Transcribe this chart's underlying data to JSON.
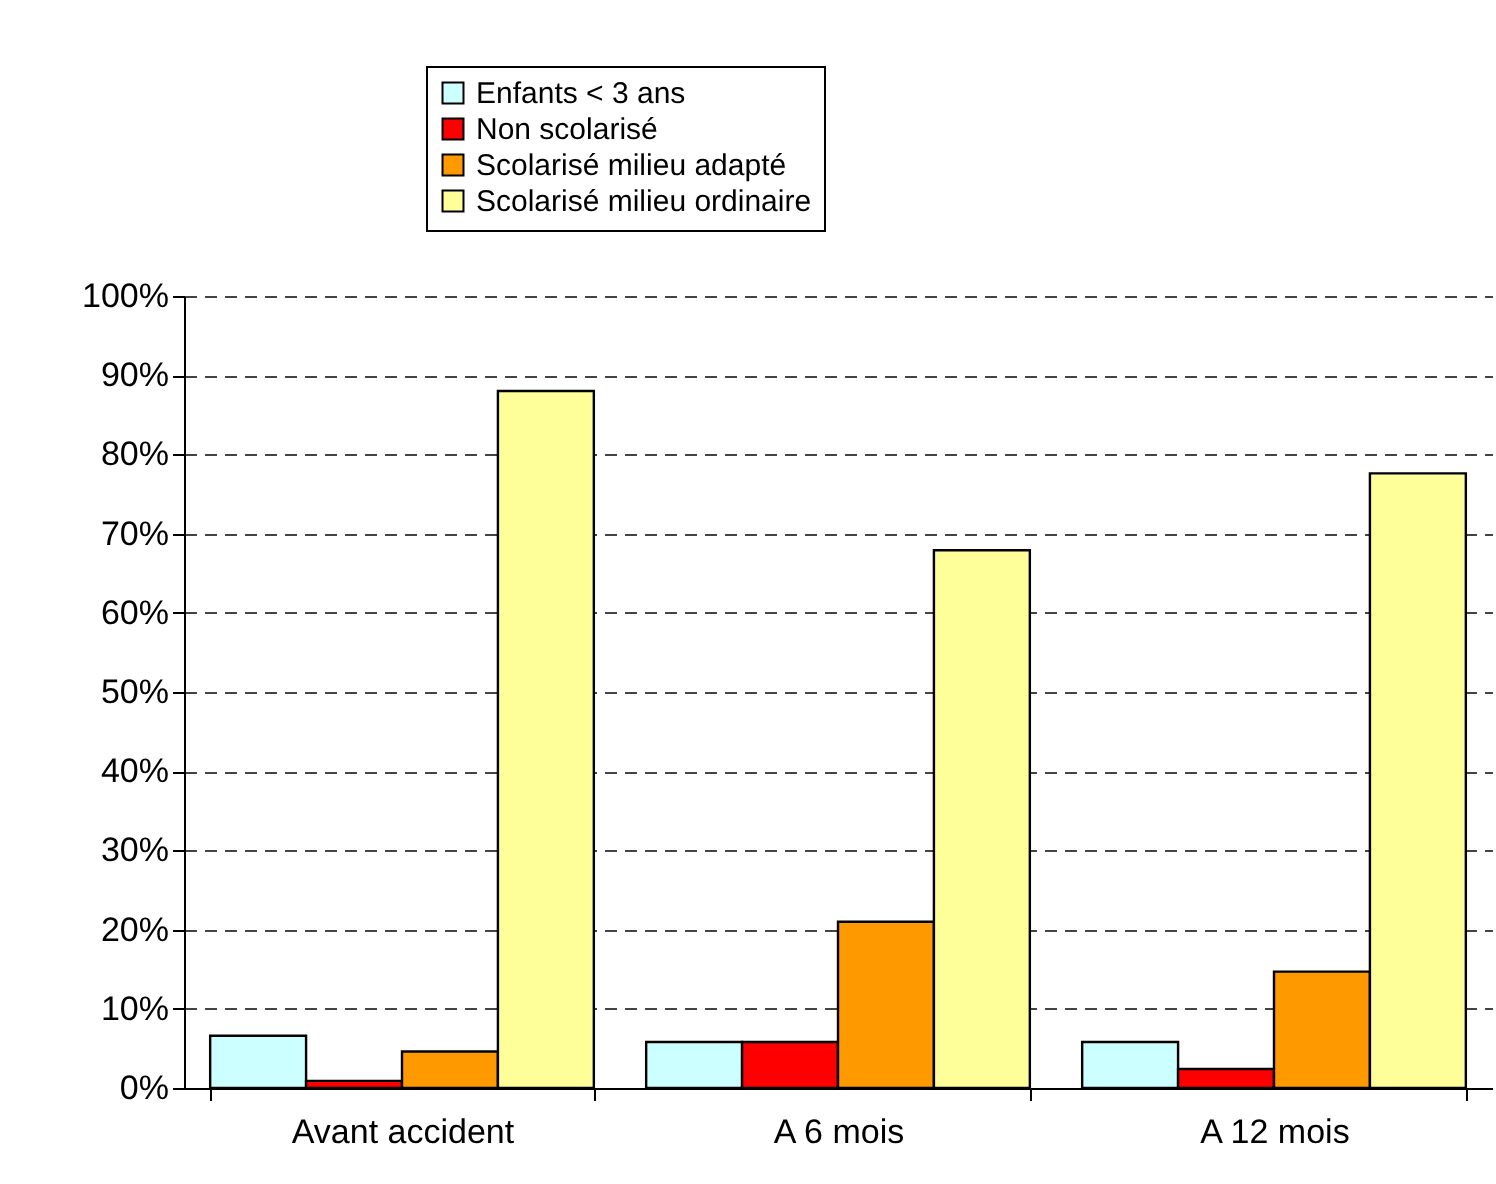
{
  "chart_data": {
    "type": "bar",
    "categories": [
      "Avant accident",
      "A 6 mois",
      "A 12 mois"
    ],
    "series": [
      {
        "name": "Enfants < 3 ans",
        "color": "#ccffff",
        "values": [
          6.6,
          5.8,
          5.8
        ]
      },
      {
        "name": "Non scolarisé",
        "color": "#ff0000",
        "values": [
          0.9,
          5.8,
          2.4
        ]
      },
      {
        "name": "Scolarisé milieu adapté",
        "color": "#ff9900",
        "values": [
          4.6,
          21,
          14.7
        ]
      },
      {
        "name": "Scolarisé milieu ordinaire",
        "color": "#ffff99",
        "values": [
          88,
          67.9,
          77.6
        ]
      }
    ],
    "ylim": [
      0,
      100
    ],
    "yticks": [
      {
        "value": 0,
        "label": "0%"
      },
      {
        "value": 10,
        "label": "10%"
      },
      {
        "value": 20,
        "label": "20%"
      },
      {
        "value": 30,
        "label": "30%"
      },
      {
        "value": 40,
        "label": "40%"
      },
      {
        "value": 50,
        "label": "50%"
      },
      {
        "value": 60,
        "label": "60%"
      },
      {
        "value": 70,
        "label": "70%"
      },
      {
        "value": 80,
        "label": "80%"
      },
      {
        "value": 90,
        "label": "90%"
      },
      {
        "value": 100,
        "label": "100%"
      }
    ],
    "grid": "y",
    "legend": "top"
  }
}
